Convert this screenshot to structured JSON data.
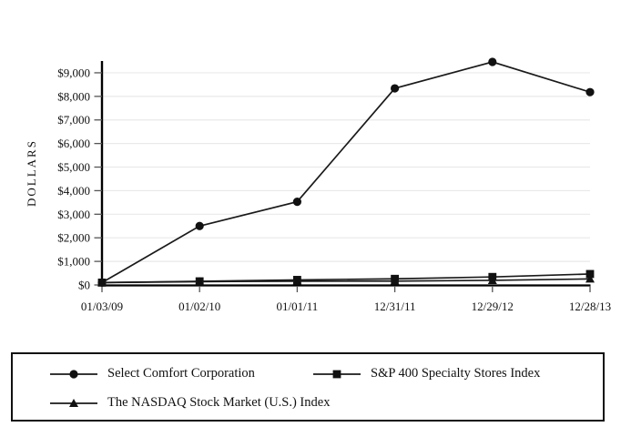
{
  "colors": {
    "background": "#ffffff",
    "axis": "#000000",
    "grid": "#e9e9e9",
    "series_line": "#1a1a1a",
    "marker_fill": "#111111",
    "text": "#111111"
  },
  "chart_data": {
    "type": "line",
    "title": "",
    "xlabel": "",
    "ylabel": "DOLLARS",
    "grid": true,
    "legend_position": "bottom-box",
    "ylim": [
      0,
      9500
    ],
    "categories": [
      "01/03/09",
      "01/02/10",
      "01/01/11",
      "12/31/11",
      "12/29/12",
      "12/28/13"
    ],
    "y_ticks": [
      {
        "value": 0,
        "label": "$0"
      },
      {
        "value": 1000,
        "label": "$1,000"
      },
      {
        "value": 2000,
        "label": "$2,000"
      },
      {
        "value": 3000,
        "label": "$3,000"
      },
      {
        "value": 4000,
        "label": "$4,000"
      },
      {
        "value": 5000,
        "label": "$5,000"
      },
      {
        "value": 6000,
        "label": "$6,000"
      },
      {
        "value": 7000,
        "label": "$7,000"
      },
      {
        "value": 8000,
        "label": "$8,000"
      },
      {
        "value": 9000,
        "label": "$9,000"
      }
    ],
    "series": [
      {
        "name": "Select Comfort Corporation",
        "marker": "circle",
        "values": [
          100,
          2500,
          3530,
          8340,
          9460,
          8180
        ]
      },
      {
        "name": "S&P 400 Specialty Stores Index",
        "marker": "square",
        "values": [
          100,
          155,
          215,
          260,
          340,
          465
        ]
      },
      {
        "name": "The NASDAQ Stock Market (U.S.) Index",
        "marker": "triangle",
        "values": [
          100,
          140,
          160,
          165,
          195,
          255
        ]
      }
    ]
  },
  "legend": {
    "items": [
      {
        "label": "Select Comfort Corporation",
        "marker": "circle"
      },
      {
        "label": "S&P 400 Specialty Stores Index",
        "marker": "square"
      },
      {
        "label": "The NASDAQ Stock Market (U.S.) Index",
        "marker": "triangle"
      }
    ]
  }
}
